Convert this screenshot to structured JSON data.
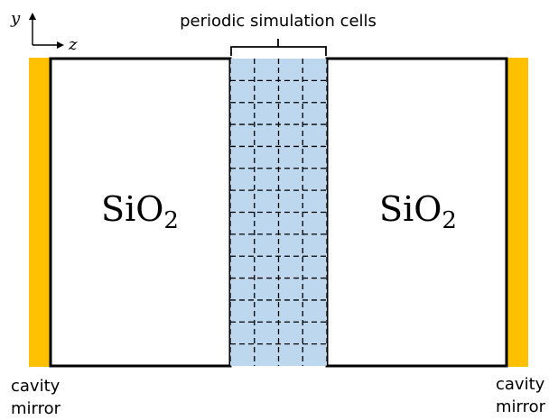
{
  "axes": {
    "y_label": "y",
    "z_label": "z"
  },
  "caption": "periodic simulation cells",
  "left_block": {
    "base": "SiO",
    "subscript": "2"
  },
  "right_block": {
    "base": "SiO",
    "subscript": "2"
  },
  "left_mirror": {
    "line1": "cavity",
    "line2": "mirror"
  },
  "right_mirror": {
    "line1": "cavity",
    "line2": "mirror"
  },
  "grid": {
    "columns": 4,
    "rows": 14
  },
  "colors": {
    "mirror": "#FFC000",
    "cells": "#BDD7EE",
    "outline": "#000000",
    "text": "#000000"
  }
}
